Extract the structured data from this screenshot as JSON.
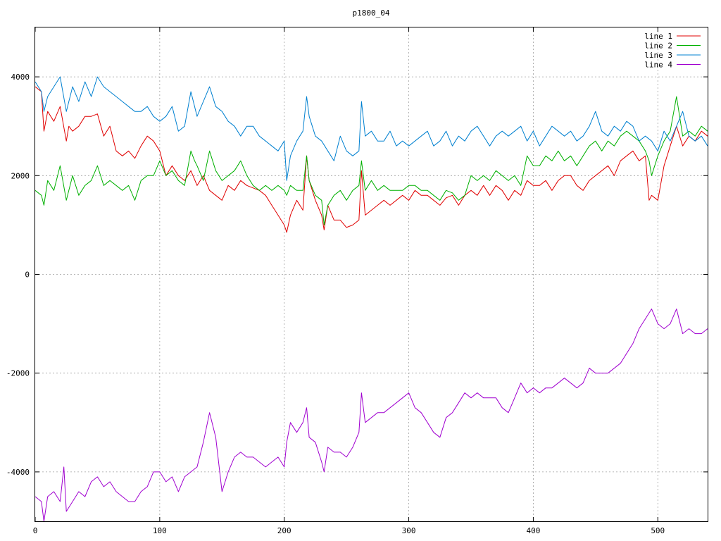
{
  "chart_data": {
    "type": "line",
    "title": "p1800_04",
    "xlabel": "",
    "ylabel": "",
    "xlim": [
      0,
      540
    ],
    "ylim": [
      -5000,
      5000
    ],
    "xticks": [
      0,
      100,
      200,
      300,
      400,
      500
    ],
    "yticks": [
      -4000,
      -2000,
      0,
      2000,
      4000
    ],
    "grid": true,
    "legend_position": "top-right",
    "series": [
      {
        "name": "line 1",
        "color": "#e00000",
        "x": [
          0,
          5,
          7,
          10,
          15,
          20,
          25,
          27,
          30,
          35,
          40,
          45,
          50,
          55,
          60,
          65,
          70,
          75,
          80,
          85,
          90,
          95,
          100,
          105,
          110,
          115,
          120,
          125,
          130,
          135,
          140,
          145,
          150,
          155,
          160,
          165,
          170,
          175,
          180,
          185,
          190,
          195,
          200,
          202,
          205,
          210,
          215,
          218,
          220,
          225,
          230,
          232,
          235,
          240,
          245,
          250,
          255,
          260,
          262,
          265,
          270,
          275,
          280,
          285,
          290,
          295,
          300,
          305,
          310,
          315,
          320,
          325,
          330,
          335,
          340,
          345,
          350,
          355,
          360,
          365,
          370,
          375,
          380,
          385,
          390,
          395,
          400,
          405,
          410,
          415,
          420,
          425,
          430,
          435,
          440,
          445,
          450,
          455,
          460,
          465,
          470,
          475,
          480,
          485,
          490,
          493,
          495,
          500,
          505,
          510,
          515,
          520,
          525,
          530,
          535,
          540
        ],
        "y": [
          3800,
          3700,
          2900,
          3300,
          3100,
          3400,
          2700,
          3000,
          2900,
          3000,
          3200,
          3200,
          3250,
          2800,
          3000,
          2500,
          2400,
          2500,
          2350,
          2600,
          2800,
          2700,
          2500,
          2000,
          2200,
          2000,
          1900,
          2100,
          1800,
          2000,
          1700,
          1600,
          1500,
          1800,
          1700,
          1900,
          1800,
          1750,
          1700,
          1600,
          1400,
          1200,
          1000,
          850,
          1200,
          1500,
          1300,
          2400,
          1900,
          1500,
          1200,
          900,
          1400,
          1100,
          1100,
          950,
          1000,
          1100,
          2100,
          1200,
          1300,
          1400,
          1500,
          1400,
          1500,
          1600,
          1500,
          1700,
          1600,
          1600,
          1500,
          1400,
          1550,
          1600,
          1400,
          1600,
          1700,
          1600,
          1800,
          1600,
          1800,
          1700,
          1500,
          1700,
          1600,
          1900,
          1800,
          1800,
          1900,
          1700,
          1900,
          2000,
          2000,
          1800,
          1700,
          1900,
          2000,
          2100,
          2200,
          2000,
          2300,
          2400,
          2500,
          2300,
          2400,
          1500,
          1600,
          1500,
          2200,
          2600,
          3000,
          2600,
          2800,
          2700,
          2900,
          2800
        ]
      },
      {
        "name": "line 2",
        "color": "#00b000",
        "x": [
          0,
          5,
          7,
          10,
          15,
          20,
          25,
          30,
          35,
          40,
          45,
          50,
          55,
          60,
          65,
          70,
          75,
          80,
          85,
          90,
          95,
          100,
          105,
          110,
          115,
          120,
          125,
          128,
          130,
          135,
          140,
          145,
          150,
          155,
          160,
          165,
          170,
          175,
          180,
          185,
          190,
          195,
          200,
          202,
          205,
          210,
          215,
          218,
          220,
          225,
          230,
          232,
          235,
          240,
          245,
          250,
          255,
          260,
          262,
          265,
          270,
          275,
          280,
          285,
          290,
          295,
          300,
          305,
          310,
          315,
          320,
          325,
          330,
          335,
          340,
          345,
          350,
          355,
          360,
          365,
          370,
          375,
          380,
          385,
          390,
          395,
          400,
          405,
          410,
          415,
          420,
          425,
          430,
          435,
          440,
          445,
          450,
          455,
          460,
          465,
          470,
          475,
          480,
          485,
          490,
          493,
          495,
          500,
          505,
          510,
          515,
          520,
          525,
          530,
          535,
          540
        ],
        "y": [
          1700,
          1600,
          1400,
          1900,
          1700,
          2200,
          1500,
          2000,
          1600,
          1800,
          1900,
          2200,
          1800,
          1900,
          1800,
          1700,
          1800,
          1500,
          1900,
          2000,
          2000,
          2300,
          2000,
          2100,
          1900,
          1800,
          2500,
          2300,
          2200,
          1900,
          2500,
          2100,
          1900,
          2000,
          2100,
          2300,
          2000,
          1800,
          1700,
          1800,
          1700,
          1800,
          1700,
          1600,
          1800,
          1700,
          1700,
          2400,
          1900,
          1600,
          1500,
          1000,
          1400,
          1600,
          1700,
          1500,
          1700,
          1800,
          2300,
          1700,
          1900,
          1700,
          1800,
          1700,
          1700,
          1700,
          1800,
          1800,
          1700,
          1700,
          1600,
          1500,
          1700,
          1650,
          1500,
          1600,
          2000,
          1900,
          2000,
          1900,
          2100,
          2000,
          1900,
          2000,
          1800,
          2400,
          2200,
          2200,
          2400,
          2300,
          2500,
          2300,
          2400,
          2200,
          2400,
          2600,
          2700,
          2500,
          2700,
          2600,
          2800,
          2900,
          2800,
          2700,
          2500,
          2300,
          2000,
          2400,
          2700,
          2900,
          3600,
          2800,
          2900,
          2800,
          3000,
          2900
        ]
      },
      {
        "name": "line 3",
        "color": "#0080d0",
        "x": [
          0,
          5,
          7,
          10,
          15,
          20,
          25,
          30,
          35,
          40,
          45,
          50,
          55,
          60,
          65,
          70,
          75,
          80,
          85,
          90,
          95,
          100,
          105,
          110,
          115,
          120,
          125,
          130,
          135,
          140,
          145,
          150,
          155,
          160,
          165,
          170,
          175,
          180,
          185,
          190,
          195,
          200,
          202,
          205,
          210,
          215,
          218,
          220,
          225,
          230,
          235,
          240,
          245,
          250,
          255,
          260,
          262,
          265,
          270,
          275,
          280,
          285,
          290,
          295,
          300,
          305,
          310,
          315,
          320,
          325,
          330,
          335,
          340,
          345,
          350,
          355,
          360,
          365,
          370,
          375,
          380,
          385,
          390,
          395,
          400,
          405,
          410,
          415,
          420,
          425,
          430,
          435,
          440,
          445,
          450,
          455,
          460,
          465,
          470,
          475,
          480,
          485,
          490,
          495,
          500,
          505,
          510,
          515,
          520,
          525,
          530,
          535,
          540
        ],
        "y": [
          3900,
          3700,
          3300,
          3600,
          3800,
          4000,
          3300,
          3800,
          3500,
          3900,
          3600,
          4000,
          3800,
          3700,
          3600,
          3500,
          3400,
          3300,
          3300,
          3400,
          3200,
          3100,
          3200,
          3400,
          2900,
          3000,
          3700,
          3200,
          3500,
          3800,
          3400,
          3300,
          3100,
          3000,
          2800,
          3000,
          3000,
          2800,
          2700,
          2600,
          2500,
          2700,
          1900,
          2400,
          2700,
          2900,
          3600,
          3200,
          2800,
          2700,
          2500,
          2300,
          2800,
          2500,
          2400,
          2500,
          3500,
          2800,
          2900,
          2700,
          2700,
          2900,
          2600,
          2700,
          2600,
          2700,
          2800,
          2900,
          2600,
          2700,
          2900,
          2600,
          2800,
          2700,
          2900,
          3000,
          2800,
          2600,
          2800,
          2900,
          2800,
          2900,
          3000,
          2700,
          2900,
          2600,
          2800,
          3000,
          2900,
          2800,
          2900,
          2700,
          2800,
          3000,
          3300,
          2900,
          2800,
          3000,
          2900,
          3100,
          3000,
          2700,
          2800,
          2700,
          2500,
          2900,
          2700,
          3000,
          3300,
          2800,
          2700,
          2800,
          2600
        ]
      },
      {
        "name": "line 4",
        "color": "#a000d0",
        "x": [
          0,
          5,
          7,
          10,
          15,
          20,
          23,
          25,
          30,
          35,
          40,
          45,
          50,
          55,
          60,
          65,
          70,
          75,
          80,
          85,
          90,
          95,
          100,
          105,
          110,
          115,
          120,
          125,
          130,
          135,
          140,
          145,
          150,
          155,
          160,
          165,
          170,
          175,
          180,
          185,
          190,
          195,
          200,
          202,
          205,
          210,
          215,
          218,
          220,
          225,
          230,
          232,
          235,
          240,
          245,
          250,
          255,
          260,
          262,
          265,
          270,
          275,
          280,
          285,
          290,
          295,
          300,
          305,
          310,
          315,
          320,
          325,
          330,
          335,
          340,
          345,
          350,
          355,
          360,
          365,
          370,
          375,
          380,
          385,
          390,
          395,
          400,
          405,
          410,
          415,
          420,
          425,
          430,
          435,
          440,
          445,
          450,
          455,
          460,
          465,
          470,
          475,
          480,
          485,
          490,
          495,
          500,
          505,
          510,
          515,
          520,
          525,
          530,
          535,
          540
        ],
        "y": [
          -4500,
          -4600,
          -5000,
          -4500,
          -4400,
          -4600,
          -3900,
          -4800,
          -4600,
          -4400,
          -4500,
          -4200,
          -4100,
          -4300,
          -4200,
          -4400,
          -4500,
          -4600,
          -4600,
          -4400,
          -4300,
          -4000,
          -4000,
          -4200,
          -4100,
          -4400,
          -4100,
          -4000,
          -3900,
          -3400,
          -2800,
          -3300,
          -4400,
          -4000,
          -3700,
          -3600,
          -3700,
          -3700,
          -3800,
          -3900,
          -3800,
          -3700,
          -3900,
          -3400,
          -3000,
          -3200,
          -3000,
          -2700,
          -3300,
          -3400,
          -3800,
          -4000,
          -3500,
          -3600,
          -3600,
          -3700,
          -3500,
          -3200,
          -2400,
          -3000,
          -2900,
          -2800,
          -2800,
          -2700,
          -2600,
          -2500,
          -2400,
          -2700,
          -2800,
          -3000,
          -3200,
          -3300,
          -2900,
          -2800,
          -2600,
          -2400,
          -2500,
          -2400,
          -2500,
          -2500,
          -2500,
          -2700,
          -2800,
          -2500,
          -2200,
          -2400,
          -2300,
          -2400,
          -2300,
          -2300,
          -2200,
          -2100,
          -2200,
          -2300,
          -2200,
          -1900,
          -2000,
          -2000,
          -2000,
          -1900,
          -1800,
          -1600,
          -1400,
          -1100,
          -900,
          -700,
          -1000,
          -1100,
          -1000,
          -700,
          -1200,
          -1100,
          -1200,
          -1200,
          -1100
        ]
      }
    ]
  }
}
